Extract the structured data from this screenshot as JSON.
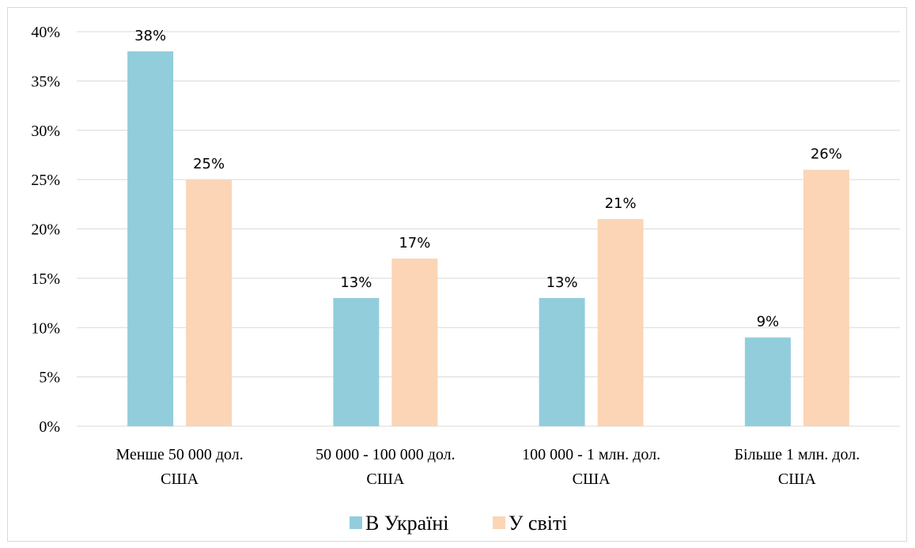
{
  "chart_data": {
    "type": "bar",
    "categories": [
      [
        "Менше 50 000 дол.",
        "США"
      ],
      [
        "50 000 - 100 000 дол.",
        "США"
      ],
      [
        "100 000 - 1 млн. дол.",
        "США"
      ],
      [
        "Більше 1 млн. дол.",
        "США"
      ]
    ],
    "series": [
      {
        "name": "В Україні",
        "values": [
          38,
          13,
          13,
          9
        ],
        "labels": [
          "38%",
          "13%",
          "13%",
          "9%"
        ],
        "color": "#92cddc"
      },
      {
        "name": "У світі",
        "values": [
          25,
          17,
          21,
          26
        ],
        "labels": [
          "25%",
          "17%",
          "21%",
          "26%"
        ],
        "color": "#fbd5b5"
      }
    ],
    "yticks": [
      "0%",
      "5%",
      "10%",
      "15%",
      "20%",
      "25%",
      "30%",
      "35%",
      "40%"
    ],
    "ylim": [
      0,
      40
    ],
    "grid": true,
    "gridColor": "#d9d9d9",
    "legend": "bottom",
    "title": "",
    "xlabel": "",
    "ylabel": ""
  }
}
